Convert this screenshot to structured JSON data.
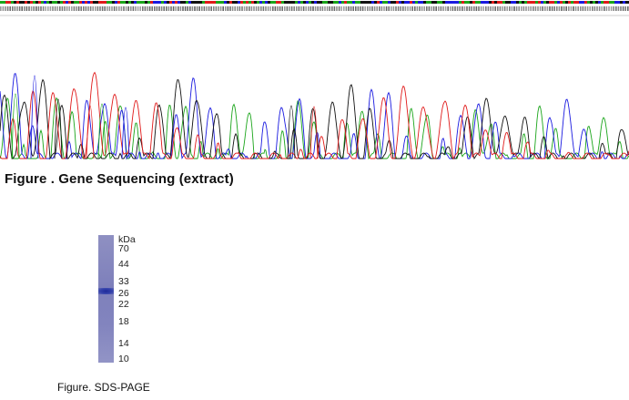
{
  "figure1": {
    "caption": "Figure . Gene Sequencing (extract)"
  },
  "figure2": {
    "caption": "Figure. SDS-PAGE",
    "unit_label": "kDa",
    "markers": [
      "70",
      "44",
      "33",
      "26",
      "22",
      "18",
      "14",
      "10"
    ]
  },
  "trace_colors": {
    "A": "#1aa51a",
    "C": "#1a1ae0",
    "G": "#111111",
    "T": "#e01a1a"
  },
  "gel_colors": {
    "lane": "#8486be",
    "band": "#2a36a6"
  }
}
